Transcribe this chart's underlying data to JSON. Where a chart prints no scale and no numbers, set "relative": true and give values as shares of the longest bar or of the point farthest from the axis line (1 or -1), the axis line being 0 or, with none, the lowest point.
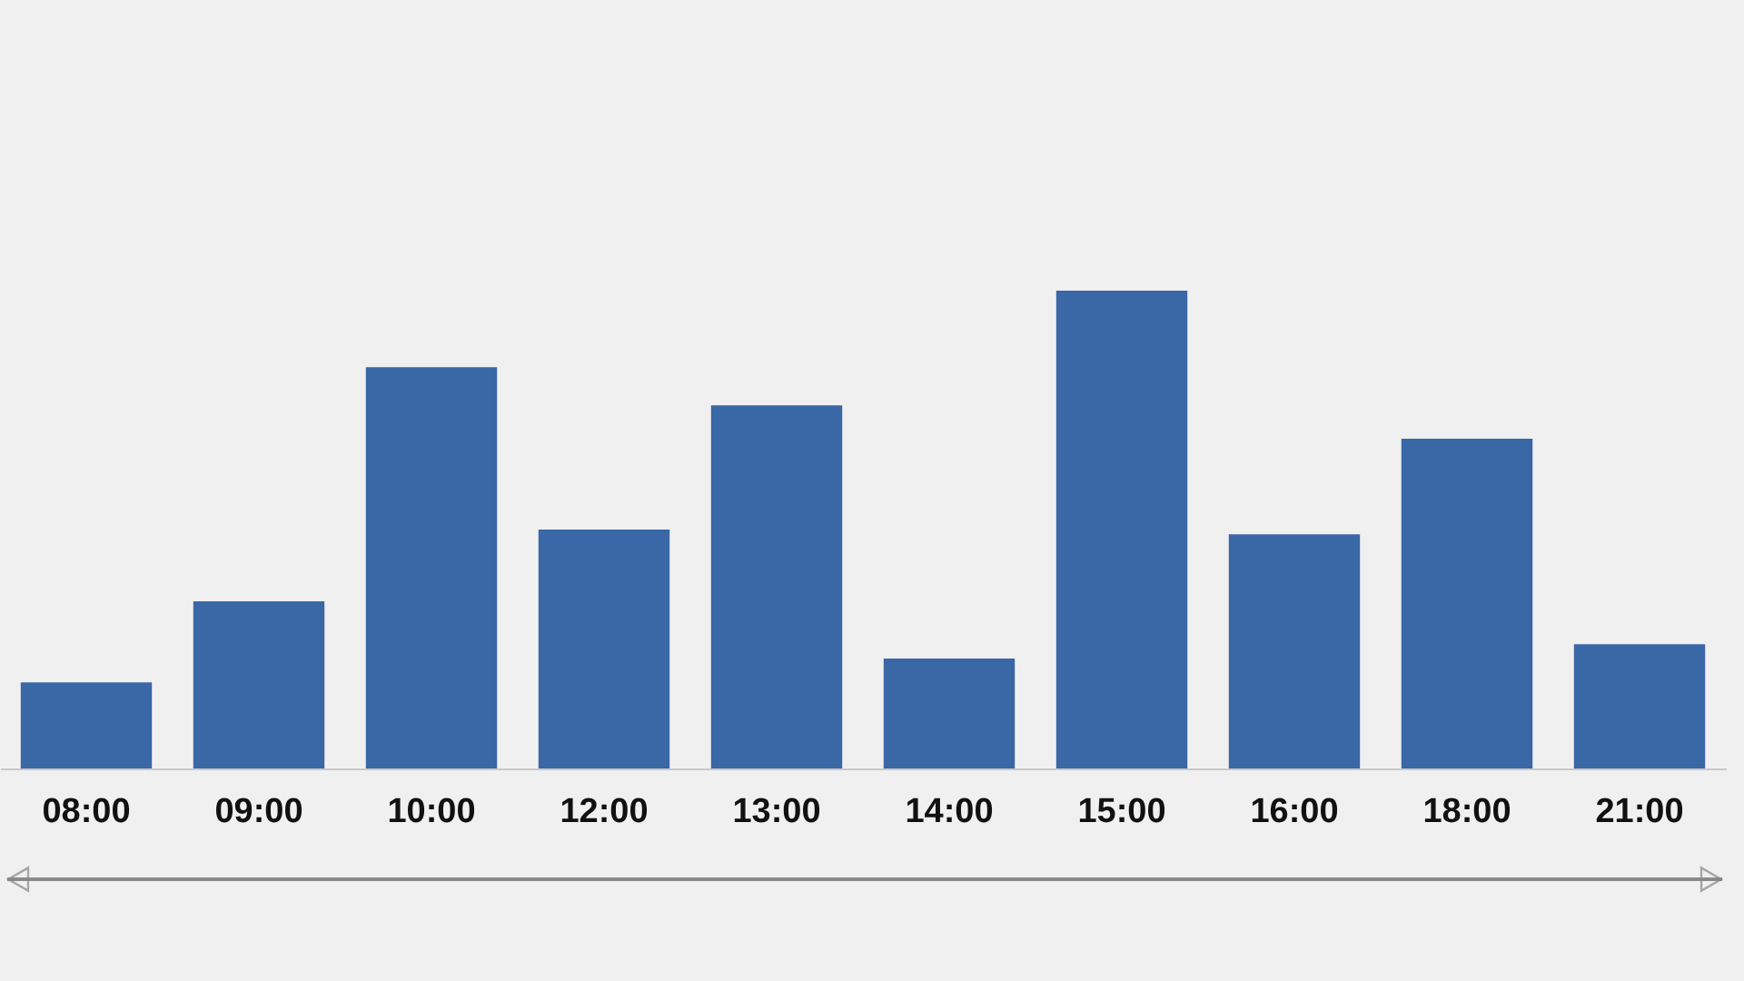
{
  "chart_data": {
    "type": "bar",
    "relative": true,
    "categories": [
      "08:00",
      "09:00",
      "10:00",
      "12:00",
      "13:00",
      "14:00",
      "15:00",
      "16:00",
      "18:00",
      "21:00"
    ],
    "values": [
      0.18,
      0.35,
      0.84,
      0.5,
      0.76,
      0.23,
      1,
      0.49,
      0.69,
      0.26
    ],
    "color": "#3a67a6",
    "grid": false
  }
}
